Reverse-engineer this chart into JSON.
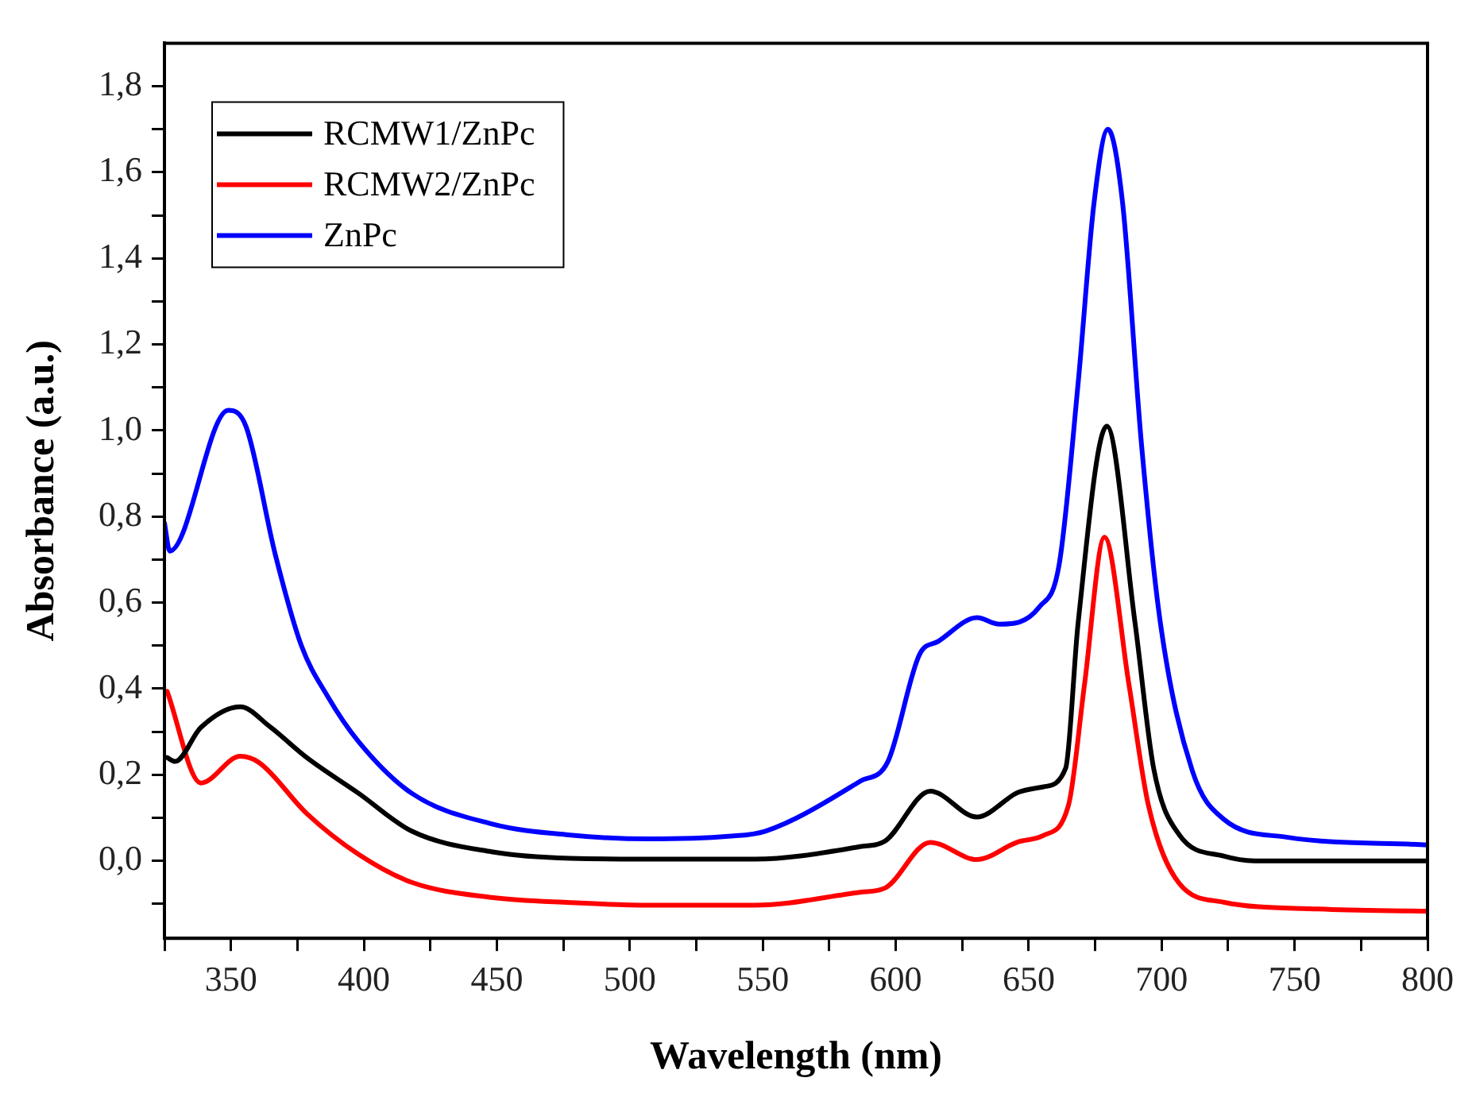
{
  "chart_data": {
    "type": "line",
    "xlabel": "Wavelength (nm)",
    "ylabel": "Absorbance (a.u.)",
    "xlim": [
      325,
      800
    ],
    "xticks": [
      {
        "value": 325,
        "label": null
      },
      350,
      {
        "value": 375,
        "label": null
      },
      400,
      {
        "value": 425,
        "label": null
      },
      450,
      {
        "value": 475,
        "label": null
      },
      500,
      {
        "value": 525,
        "label": null
      },
      550,
      {
        "value": 575,
        "label": null
      },
      600,
      {
        "value": 625,
        "label": null
      },
      650,
      {
        "value": 675,
        "label": null
      },
      700,
      {
        "value": 725,
        "label": null
      },
      750,
      {
        "value": 775,
        "label": null
      },
      800
    ],
    "ylim": [
      -0.18,
      1.9
    ],
    "yticks": [
      {
        "value": -0.1,
        "label": null
      },
      {
        "value": 0,
        "label": "0,0"
      },
      {
        "value": 0.1,
        "label": null
      },
      {
        "value": 0.2,
        "label": "0,2"
      },
      {
        "value": 0.3,
        "label": null
      },
      {
        "value": 0.4,
        "label": "0,4"
      },
      {
        "value": 0.5,
        "label": null
      },
      {
        "value": 0.6,
        "label": "0,6"
      },
      {
        "value": 0.7,
        "label": null
      },
      {
        "value": 0.8,
        "label": "0,8"
      },
      {
        "value": 0.9,
        "label": null
      },
      {
        "value": 1.0,
        "label": "1,0"
      },
      {
        "value": 1.1,
        "label": null
      },
      {
        "value": 1.2,
        "label": "1,2"
      },
      {
        "value": 1.3,
        "label": null
      },
      {
        "value": 1.4,
        "label": "1,4"
      },
      {
        "value": 1.5,
        "label": null
      },
      {
        "value": 1.6,
        "label": "1,6"
      },
      {
        "value": 1.7,
        "label": null
      },
      {
        "value": 1.8,
        "label": "1,8"
      }
    ],
    "grid": false,
    "legend": "top left",
    "marker": "none",
    "line_style": "solid",
    "series": [
      {
        "name": "RCMW1/ZnPc",
        "color": "#000000",
        "x": [
          326,
          329,
          338.7,
          353.5,
          364.6,
          378.5,
          398,
          418,
          448,
          477.6,
          517,
          547,
          586.6,
          596,
          613,
          630.5,
          646,
          655.6,
          663.9,
          668.6,
          679.4,
          690,
          697,
          706.7,
          723.3,
          735,
          800
        ],
        "values": [
          0.24,
          0.231,
          0.31,
          0.358,
          0.312,
          0.24,
          0.157,
          0.069,
          0.021,
          0.006,
          0.004,
          0.004,
          0.033,
          0.046,
          0.162,
          0.102,
          0.159,
          0.172,
          0.215,
          0.553,
          1.01,
          0.553,
          0.215,
          0.06,
          0.011,
          0.0,
          0.0
        ]
      },
      {
        "name": "RCMW2/ZnPc",
        "color": "#ff0000",
        "x": [
          326,
          338.7,
          353.5,
          360.7,
          378.5,
          398,
          418,
          448,
          477.6,
          507,
          547,
          586.6,
          596,
          613,
          630.5,
          646,
          655.6,
          665,
          671,
          678.5,
          687.7,
          695,
          706.7,
          723.3,
          759,
          800
        ],
        "values": [
          0.394,
          0.181,
          0.243,
          0.228,
          0.11,
          0.015,
          -0.05,
          -0.085,
          -0.097,
          -0.103,
          -0.103,
          -0.073,
          -0.063,
          0.043,
          0.003,
          0.044,
          0.059,
          0.13,
          0.41,
          0.752,
          0.41,
          0.13,
          -0.053,
          -0.096,
          -0.112,
          -0.117
        ]
      },
      {
        "name": "ZnPc",
        "color": "#0000ff",
        "x": [
          325,
          327,
          349,
          355.7,
          366.6,
          376.5,
          386.3,
          398,
          418,
          448,
          477.6,
          507,
          537,
          551,
          586.6,
          597,
          609,
          616,
          630.6,
          639,
          654,
          661.5,
          668.6,
          674.6,
          679.8,
          685.3,
          692.4,
          699.6,
          711.5,
          723.3,
          747,
          800
        ],
        "values": [
          0.785,
          0.72,
          1.047,
          1.009,
          0.714,
          0.5,
          0.383,
          0.277,
          0.157,
          0.086,
          0.06,
          0.051,
          0.057,
          0.069,
          0.185,
          0.23,
          0.48,
          0.51,
          0.565,
          0.55,
          0.59,
          0.69,
          1.11,
          1.53,
          1.7,
          1.53,
          0.97,
          0.55,
          0.21,
          0.097,
          0.055,
          0.037
        ]
      }
    ]
  }
}
